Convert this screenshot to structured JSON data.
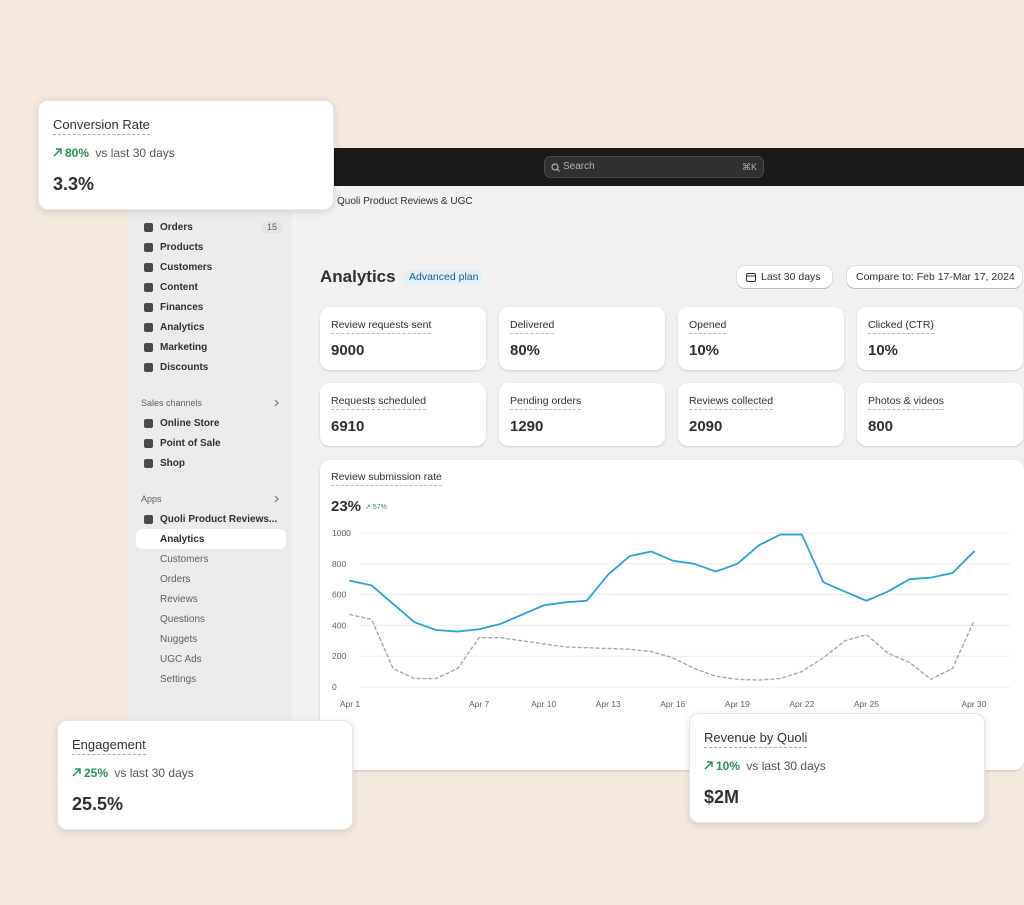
{
  "topbar": {
    "search": "Search",
    "shortcut": "⌘K"
  },
  "breadcrumb": "Quoli Product Reviews & UGC",
  "sidebar": {
    "items": [
      {
        "label": "Orders",
        "badge": "15"
      },
      {
        "label": "Products"
      },
      {
        "label": "Customers"
      },
      {
        "label": "Content"
      },
      {
        "label": "Finances"
      },
      {
        "label": "Analytics"
      },
      {
        "label": "Marketing"
      },
      {
        "label": "Discounts"
      }
    ],
    "sales_channels": {
      "title": "Sales channels",
      "items": [
        "Online Store",
        "Point of Sale",
        "Shop"
      ]
    },
    "apps": {
      "title": "Apps",
      "app": "Quoli Product Reviews...",
      "items": [
        "Analytics",
        "Customers",
        "Orders",
        "Reviews",
        "Questions",
        "Nuggets",
        "UGC Ads",
        "Settings"
      ]
    }
  },
  "header": {
    "title": "Analytics",
    "badge": "Advanced plan",
    "range": "Last 30 days",
    "compare": "Compare to: Feb 17-Mar 17, 2024"
  },
  "metrics": [
    {
      "label": "Review requests sent",
      "value": "9000"
    },
    {
      "label": "Delivered",
      "value": "80%"
    },
    {
      "label": "Opened",
      "value": "10%"
    },
    {
      "label": "Clicked (CTR)",
      "value": "10%"
    },
    {
      "label": "Requests scheduled",
      "value": "6910"
    },
    {
      "label": "Pending orders",
      "value": "1290"
    },
    {
      "label": "Reviews collected",
      "value": "2090"
    },
    {
      "label": "Photos & videos",
      "value": "800"
    }
  ],
  "chart_data": {
    "type": "line",
    "title": "Review submission rate",
    "headline": "23%",
    "change": "57%",
    "categories": [
      "Apr 1",
      null,
      null,
      null,
      null,
      null,
      "Apr 7",
      null,
      null,
      "Apr 10",
      null,
      null,
      "Apr 13",
      null,
      null,
      "Apr 16",
      null,
      null,
      "Apr 19",
      null,
      null,
      "Apr 22",
      null,
      null,
      "Apr 25",
      null,
      null,
      null,
      null,
      "Apr 30"
    ],
    "series": [
      {
        "color": "#2ba3d4",
        "dash": false,
        "values": [
          690,
          660,
          540,
          420,
          370,
          360,
          375,
          410,
          470,
          530,
          550,
          560,
          730,
          850,
          880,
          820,
          800,
          750,
          800,
          920,
          990,
          990,
          680,
          620,
          560,
          620,
          700,
          710,
          740,
          880
        ]
      },
      {
        "color": "#a8a8a8",
        "dash": true,
        "values": [
          470,
          440,
          120,
          55,
          55,
          120,
          320,
          320,
          300,
          280,
          260,
          255,
          250,
          245,
          230,
          190,
          120,
          70,
          50,
          45,
          55,
          100,
          190,
          300,
          340,
          220,
          160,
          50,
          120,
          430
        ]
      }
    ],
    "ylim": [
      0,
      1000
    ],
    "yticks": [
      0,
      200,
      400,
      600,
      800,
      1000
    ],
    "grid": true
  },
  "cards": [
    {
      "title": "Conversion Rate",
      "change": "80%",
      "compare": "vs last 30 days",
      "value": "3.3%"
    },
    {
      "title": "Engagement",
      "change": "25%",
      "compare": "vs last 30 days",
      "value": "25.5%"
    },
    {
      "title": "Revenue by Quoli",
      "change": "10%",
      "compare": "vs last 30 days",
      "value": "$2M"
    }
  ]
}
